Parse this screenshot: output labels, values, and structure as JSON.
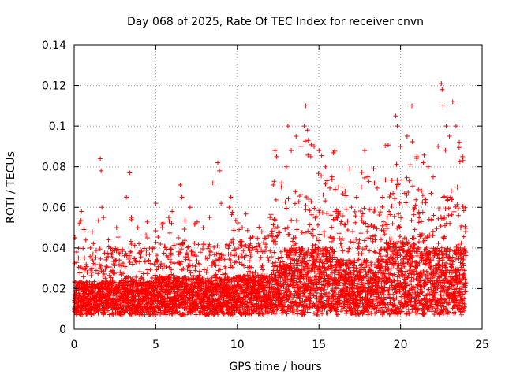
{
  "chart_data": {
    "type": "scatter",
    "title": "Day 068 of 2025, Rate Of TEC Index for receiver cnvn",
    "xlabel": "GPS time / hours",
    "ylabel": "ROTI / TECUs",
    "xlim": [
      0,
      25
    ],
    "ylim": [
      0,
      0.14
    ],
    "xticks": [
      0,
      5,
      10,
      15,
      20,
      25
    ],
    "xtick_labels": [
      "0",
      "5",
      "10",
      "15",
      "20",
      "25"
    ],
    "yticks": [
      0,
      0.02,
      0.04,
      0.06,
      0.08,
      0.1,
      0.12,
      0.14
    ],
    "ytick_labels": [
      "0",
      "0.02",
      "0.04",
      "0.06",
      "0.08",
      "0.1",
      "0.12",
      "0.14"
    ],
    "grid": true,
    "marker": "+",
    "marker_color": "#ff0000",
    "x_data_range": [
      0,
      24
    ],
    "series": [
      {
        "name": "ROTI",
        "points": [
          [
            0.05,
            0.045
          ],
          [
            0.15,
            0.038
          ],
          [
            0.3,
            0.052
          ],
          [
            0.45,
            0.058
          ],
          [
            0.6,
            0.03
          ],
          [
            0.8,
            0.028
          ],
          [
            1.0,
            0.04
          ],
          [
            1.6,
            0.084
          ],
          [
            1.65,
            0.078
          ],
          [
            1.7,
            0.06
          ],
          [
            1.8,
            0.055
          ],
          [
            2.1,
            0.044
          ],
          [
            2.6,
            0.05
          ],
          [
            3.2,
            0.065
          ],
          [
            3.4,
            0.077
          ],
          [
            3.5,
            0.055
          ],
          [
            3.9,
            0.05
          ],
          [
            4.5,
            0.045
          ],
          [
            4.8,
            0.04
          ],
          [
            5.0,
            0.062
          ],
          [
            5.4,
            0.05
          ],
          [
            5.8,
            0.055
          ],
          [
            6.0,
            0.058
          ],
          [
            6.5,
            0.071
          ],
          [
            6.6,
            0.065
          ],
          [
            7.1,
            0.06
          ],
          [
            7.4,
            0.052
          ],
          [
            7.9,
            0.05
          ],
          [
            8.3,
            0.055
          ],
          [
            8.5,
            0.072
          ],
          [
            8.8,
            0.082
          ],
          [
            8.9,
            0.078
          ],
          [
            9.0,
            0.062
          ],
          [
            9.5,
            0.06
          ],
          [
            9.6,
            0.065
          ],
          [
            10.3,
            0.05
          ],
          [
            10.8,
            0.045
          ],
          [
            11.3,
            0.042
          ],
          [
            11.5,
            0.048
          ],
          [
            12.0,
            0.055
          ],
          [
            12.2,
            0.071
          ],
          [
            12.3,
            0.088
          ],
          [
            12.4,
            0.085
          ],
          [
            12.7,
            0.07
          ],
          [
            13.0,
            0.08
          ],
          [
            13.1,
            0.1
          ],
          [
            13.3,
            0.088
          ],
          [
            13.6,
            0.095
          ],
          [
            13.9,
            0.09
          ],
          [
            14.1,
            0.1
          ],
          [
            14.2,
            0.11
          ],
          [
            14.3,
            0.098
          ],
          [
            14.35,
            0.093
          ],
          [
            14.5,
            0.085
          ],
          [
            14.7,
            0.09
          ],
          [
            15.0,
            0.088
          ],
          [
            15.4,
            0.08
          ],
          [
            15.8,
            0.075
          ],
          [
            16.2,
            0.07
          ],
          [
            16.6,
            0.068
          ],
          [
            17.0,
            0.06
          ],
          [
            17.3,
            0.065
          ],
          [
            17.6,
            0.07
          ],
          [
            17.8,
            0.088
          ],
          [
            18.0,
            0.075
          ],
          [
            18.4,
            0.072
          ],
          [
            18.9,
            0.065
          ],
          [
            19.3,
            0.058
          ],
          [
            19.7,
            0.105
          ],
          [
            19.8,
            0.1
          ],
          [
            20.0,
            0.09
          ],
          [
            20.4,
            0.095
          ],
          [
            20.7,
            0.11
          ],
          [
            21.0,
            0.085
          ],
          [
            21.4,
            0.082
          ],
          [
            21.7,
            0.08
          ],
          [
            22.0,
            0.075
          ],
          [
            22.3,
            0.09
          ],
          [
            22.5,
            0.121
          ],
          [
            22.55,
            0.118
          ],
          [
            22.6,
            0.11
          ],
          [
            22.8,
            0.1
          ],
          [
            23.0,
            0.095
          ],
          [
            23.2,
            0.112
          ],
          [
            23.4,
            0.1
          ],
          [
            23.6,
            0.092
          ],
          [
            23.8,
            0.085
          ]
        ]
      }
    ]
  }
}
